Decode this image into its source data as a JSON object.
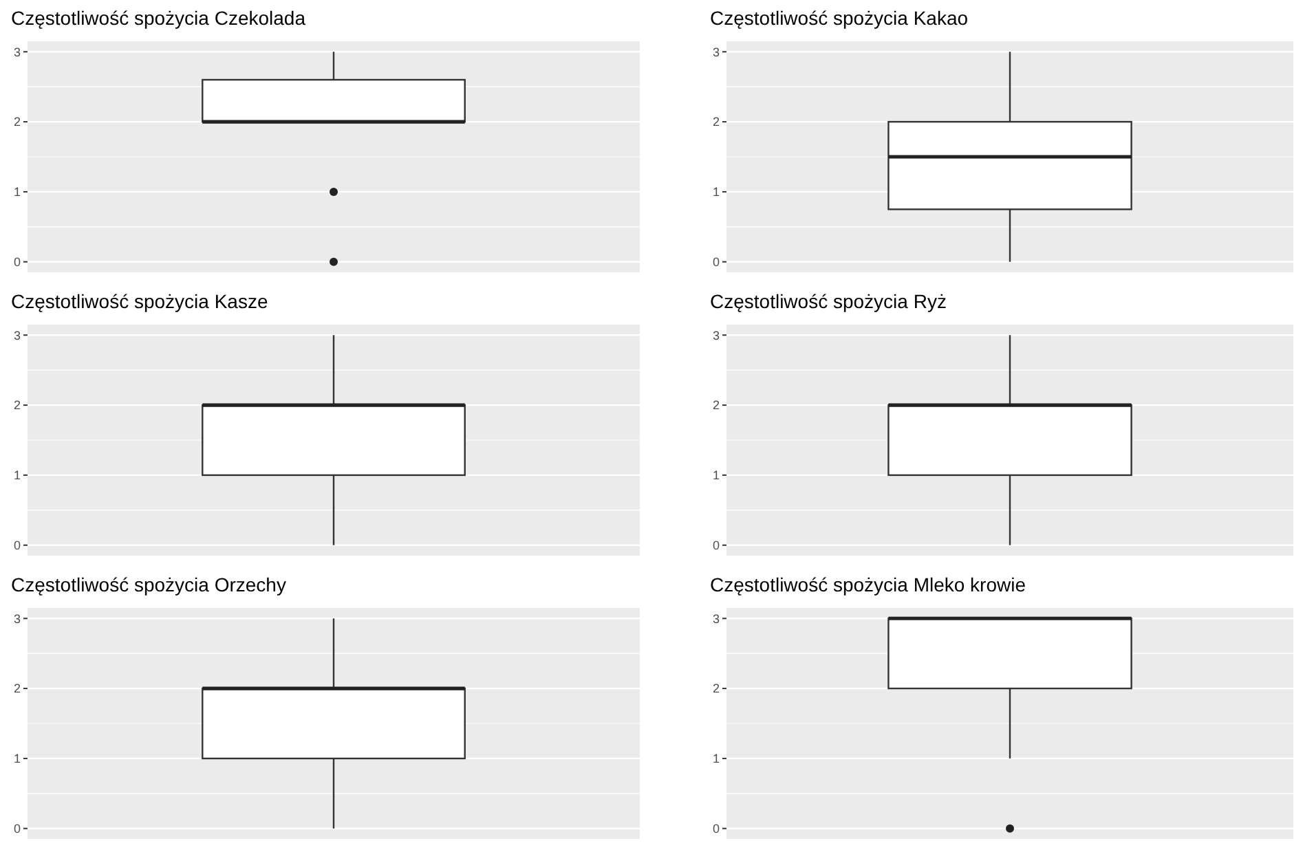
{
  "chart_data": [
    {
      "type": "box",
      "title": "Częstotliwość spożycia Czekolada",
      "categories": [
        null
      ],
      "boxes": [
        {
          "low": 2,
          "q1": 2,
          "median": 2,
          "q3": 2.6,
          "high": 3,
          "outliers": [
            1,
            0
          ]
        }
      ],
      "ylim": [
        -0.15,
        3.15
      ],
      "yticks": [
        0,
        1,
        2,
        3
      ],
      "grid": true,
      "tick_labels": "y"
    },
    {
      "type": "box",
      "title": "Częstotliwość spożycia Kakao",
      "categories": [
        null
      ],
      "boxes": [
        {
          "low": 0,
          "q1": 0.75,
          "median": 1.5,
          "q3": 2,
          "high": 3
        }
      ],
      "ylim": [
        -0.15,
        3.15
      ],
      "yticks": [
        0,
        1,
        2,
        3
      ],
      "grid": true,
      "tick_labels": "y"
    },
    {
      "type": "box",
      "title": "Częstotliwość spożycia Kasze",
      "categories": [
        null
      ],
      "boxes": [
        {
          "low": 0,
          "q1": 1,
          "median": 2,
          "q3": 2,
          "high": 3
        }
      ],
      "ylim": [
        -0.15,
        3.15
      ],
      "yticks": [
        0,
        1,
        2,
        3
      ],
      "grid": true,
      "tick_labels": "y"
    },
    {
      "type": "box",
      "title": "Częstotliwość spożycia Ryż",
      "categories": [
        null
      ],
      "boxes": [
        {
          "low": 0,
          "q1": 1,
          "median": 2,
          "q3": 2,
          "high": 3
        }
      ],
      "ylim": [
        -0.15,
        3.15
      ],
      "yticks": [
        0,
        1,
        2,
        3
      ],
      "grid": true,
      "tick_labels": "y"
    },
    {
      "type": "box",
      "title": "Częstotliwość spożycia Orzechy",
      "categories": [
        null
      ],
      "boxes": [
        {
          "low": 0,
          "q1": 1,
          "median": 2,
          "q3": 2,
          "high": 3
        }
      ],
      "ylim": [
        -0.15,
        3.15
      ],
      "yticks": [
        0,
        1,
        2,
        3
      ],
      "grid": true,
      "tick_labels": "y"
    },
    {
      "type": "box",
      "title": "Częstotliwość spożycia Mleko krowie",
      "categories": [
        null
      ],
      "boxes": [
        {
          "low": 1,
          "q1": 2,
          "median": 3,
          "q3": 3,
          "high": 3,
          "outliers": [
            0
          ]
        }
      ],
      "ylim": [
        -0.15,
        3.15
      ],
      "yticks": [
        0,
        1,
        2,
        3
      ],
      "grid": true,
      "tick_labels": "y"
    }
  ]
}
